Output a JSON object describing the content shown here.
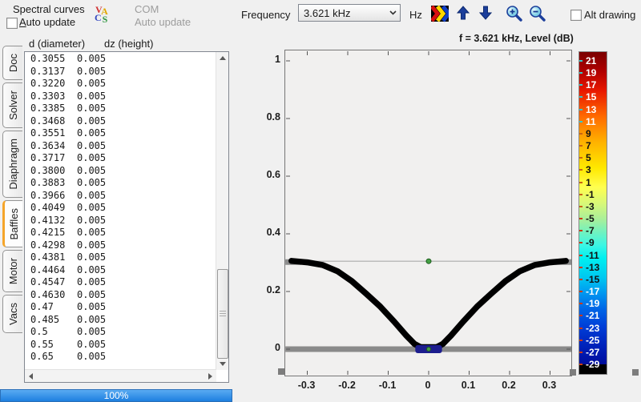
{
  "toolbar": {
    "spectral_curves": "Spectral curves",
    "auto_update": "Auto update",
    "logo": {
      "l1": "V",
      "l2": "A",
      "l3": "C",
      "l4": "S"
    },
    "com": "COM",
    "com_auto_update": "Auto update",
    "frequency_label": "Frequency",
    "frequency_value": "3.621 kHz",
    "hz": "Hz",
    "alt_drawing": "Alt drawing"
  },
  "sidebar": {
    "tabs": [
      "Doc",
      "Solver",
      "Diaphragm",
      "Baffles",
      "Motor",
      "Vacs"
    ],
    "selected": "Baffles"
  },
  "table": {
    "header_d": "d (diameter)",
    "header_dz": "dz (height)",
    "rows": [
      [
        "0.3055",
        "0.005"
      ],
      [
        "0.3137",
        "0.005"
      ],
      [
        "0.3220",
        "0.005"
      ],
      [
        "0.3303",
        "0.005"
      ],
      [
        "0.3385",
        "0.005"
      ],
      [
        "0.3468",
        "0.005"
      ],
      [
        "0.3551",
        "0.005"
      ],
      [
        "0.3634",
        "0.005"
      ],
      [
        "0.3717",
        "0.005"
      ],
      [
        "0.3800",
        "0.005"
      ],
      [
        "0.3883",
        "0.005"
      ],
      [
        "0.3966",
        "0.005"
      ],
      [
        "0.4049",
        "0.005"
      ],
      [
        "0.4132",
        "0.005"
      ],
      [
        "0.4215",
        "0.005"
      ],
      [
        "0.4298",
        "0.005"
      ],
      [
        "0.4381",
        "0.005"
      ],
      [
        "0.4464",
        "0.005"
      ],
      [
        "0.4547",
        "0.005"
      ],
      [
        "0.4630",
        "0.005"
      ],
      [
        "0.47",
        "0.005"
      ],
      [
        "0.485",
        "0.005"
      ],
      [
        "0.5",
        "0.005"
      ],
      [
        "0.55",
        "0.005"
      ],
      [
        "0.65",
        "0.005"
      ]
    ]
  },
  "progress": "100%",
  "chart_data": {
    "type": "line",
    "title": "f = 3.621 kHz, Level  (dB)",
    "x_ticks": [
      -0.3,
      -0.2,
      -0.1,
      0,
      0.1,
      0.2,
      0.3
    ],
    "y_ticks": [
      0,
      0.2,
      0.4,
      0.6,
      0.8,
      1
    ],
    "xlim": [
      -0.354,
      0.353
    ],
    "ylim": [
      -0.092,
      1.036
    ],
    "cone_profile": [
      [
        -0.339,
        0.306
      ],
      [
        -0.3,
        0.301
      ],
      [
        -0.262,
        0.292
      ],
      [
        -0.225,
        0.27
      ],
      [
        -0.19,
        0.236
      ],
      [
        -0.155,
        0.193
      ],
      [
        -0.12,
        0.148
      ],
      [
        -0.085,
        0.095
      ],
      [
        -0.055,
        0.047
      ],
      [
        -0.035,
        0.018
      ],
      [
        -0.02,
        0.007
      ],
      [
        0.02,
        0.007
      ],
      [
        0.035,
        0.018
      ],
      [
        0.055,
        0.047
      ],
      [
        0.085,
        0.095
      ],
      [
        0.12,
        0.148
      ],
      [
        0.155,
        0.193
      ],
      [
        0.19,
        0.236
      ],
      [
        0.225,
        0.27
      ],
      [
        0.262,
        0.292
      ],
      [
        0.3,
        0.301
      ],
      [
        0.339,
        0.306
      ]
    ],
    "guide_line_y": 0.305,
    "baffle_bottom": {
      "y": 0,
      "from": -0.354,
      "to": 0.353
    },
    "baffle_top_segments": [
      {
        "y": 0.302,
        "from": -0.354,
        "to": -0.315
      },
      {
        "y": 0.302,
        "from": 0.312,
        "to": 0.353
      }
    ],
    "coil": {
      "from": -0.033,
      "to": 0.033,
      "y": 0
    },
    "markers": [
      {
        "x": 0,
        "y": 0.305
      },
      {
        "x": 0,
        "y": 0
      }
    ],
    "colorbar": {
      "labels": [
        21,
        19,
        17,
        15,
        13,
        11,
        9,
        7,
        5,
        3,
        1,
        -1,
        -3,
        -5,
        -7,
        -9,
        -11,
        -13,
        -15,
        -17,
        -19,
        -21,
        -23,
        -25,
        -27,
        -29
      ]
    }
  },
  "colors": {
    "accent_orange": "#f5a52a",
    "progress_blue": "#2f8fe8",
    "baffle_gray": "#8a8a8a",
    "guide_gray": "#bcbcbc",
    "coil_navy": "#1d1d8e",
    "marker_green": "#44a044",
    "curve_black": "#000000",
    "arrow_navy": "#1c3f9b"
  }
}
